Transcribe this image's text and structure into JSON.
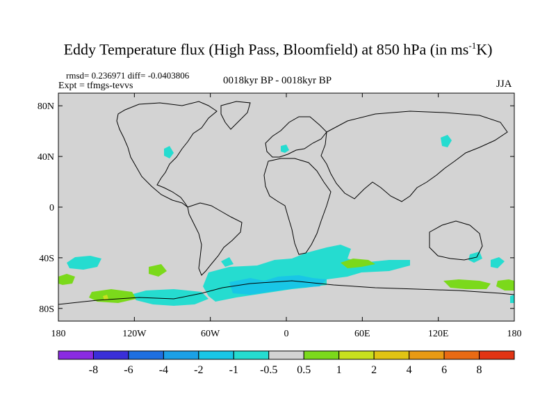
{
  "title": "Eddy Temperature flux (High Pass, Bloomfield) at 850 hPa (in ms",
  "title_sup": "-1",
  "title_end": "K)",
  "stats": "rmsd= 0.236971  diff= -0.0403806",
  "experiment": "Expt = tfmgs-tevvs",
  "period": "0018kyr BP - 0018kyr BP",
  "season": "JJA",
  "map": {
    "lat_ticks": [
      {
        "label": "80N",
        "lat": 80
      },
      {
        "label": "40N",
        "lat": 40
      },
      {
        "label": "0",
        "lat": 0
      },
      {
        "label": "40S",
        "lat": -40
      },
      {
        "label": "80S",
        "lat": -80
      }
    ],
    "lon_ticks": [
      {
        "label": "180",
        "lon": -180
      },
      {
        "label": "120W",
        "lon": -120
      },
      {
        "label": "60W",
        "lon": -60
      },
      {
        "label": "0",
        "lon": 0
      },
      {
        "label": "60E",
        "lon": 60
      },
      {
        "label": "120E",
        "lon": 120
      },
      {
        "label": "180",
        "lon": 180
      }
    ],
    "background_color": "#d3d3d3"
  },
  "colorbar": {
    "labels": [
      "-8",
      "-6",
      "-4",
      "-2",
      "-1",
      "-0.5",
      "0.5",
      "1",
      "2",
      "4",
      "6",
      "8"
    ],
    "colors": [
      "#8a2be2",
      "#3a2fd8",
      "#1f6fe0",
      "#1ba0e6",
      "#19c6e6",
      "#25dcd0",
      "#d3d3d3",
      "#7bd91b",
      "#c8e01f",
      "#e0c414",
      "#e89a14",
      "#e86a14",
      "#e23414"
    ]
  }
}
